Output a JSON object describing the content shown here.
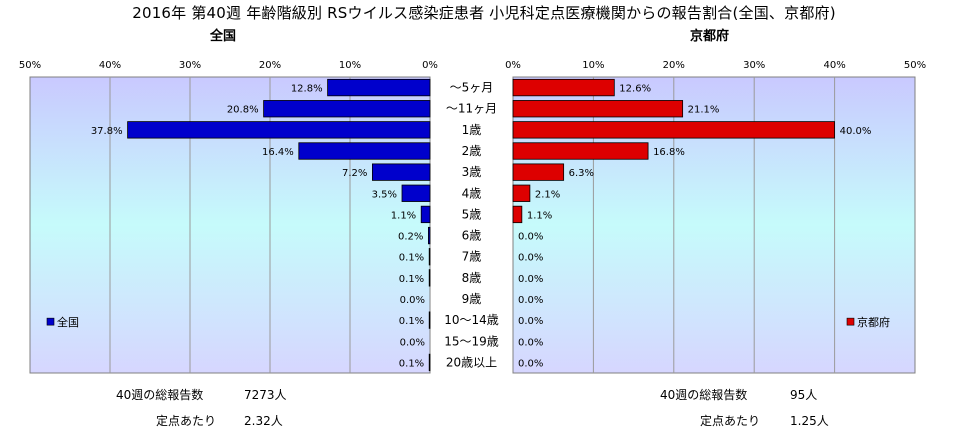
{
  "title": "2016年 第40週 年齢階級別 RSウイルス感染症患者 小児科定点医療機関からの報告割合(全国、京都府)",
  "left_panel_title": "全国",
  "right_panel_title": "京都府",
  "footer": {
    "left_total_label": "40週の総報告数",
    "left_total_value": "7273人",
    "left_per_label": "定点あたり",
    "left_per_value": "2.32人",
    "right_total_label": "40週の総報告数",
    "right_total_value": "95人",
    "right_per_label": "定点あたり",
    "right_per_value": "1.25人"
  },
  "colors": {
    "zenkoku": "#0000cc",
    "kyoto": "#dd0000"
  },
  "chart_data": {
    "type": "bar",
    "orientation": "horizontal-butterfly",
    "categories": [
      "～5ヶ月",
      "～11ヶ月",
      "1歳",
      "2歳",
      "3歳",
      "4歳",
      "5歳",
      "6歳",
      "7歳",
      "8歳",
      "9歳",
      "10～14歳",
      "15～19歳",
      "20歳以上"
    ],
    "xlim": [
      0,
      50
    ],
    "xticks": [
      "0%",
      "10%",
      "20%",
      "30%",
      "40%",
      "50%"
    ],
    "series": [
      {
        "name": "全国",
        "side": "left",
        "values": [
          12.8,
          20.8,
          37.8,
          16.4,
          7.2,
          3.5,
          1.1,
          0.2,
          0.1,
          0.1,
          0.0,
          0.1,
          0.0,
          0.1
        ],
        "labels": [
          "12.8%",
          "20.8%",
          "37.8%",
          "16.4%",
          "7.2%",
          "3.5%",
          "1.1%",
          "0.2%",
          "0.1%",
          "0.1%",
          "0.0%",
          "0.1%",
          "0.0%",
          "0.1%"
        ]
      },
      {
        "name": "京都府",
        "side": "right",
        "values": [
          12.6,
          21.1,
          40.0,
          16.8,
          6.3,
          2.1,
          1.1,
          0.0,
          0.0,
          0.0,
          0.0,
          0.0,
          0.0,
          0.0
        ],
        "labels": [
          "12.6%",
          "21.1%",
          "40.0%",
          "16.8%",
          "6.3%",
          "2.1%",
          "1.1%",
          "0.0%",
          "0.0%",
          "0.0%",
          "0.0%",
          "0.0%",
          "0.0%",
          "0.0%"
        ]
      }
    ],
    "grid": true,
    "legend_position": "bottom-inside"
  }
}
